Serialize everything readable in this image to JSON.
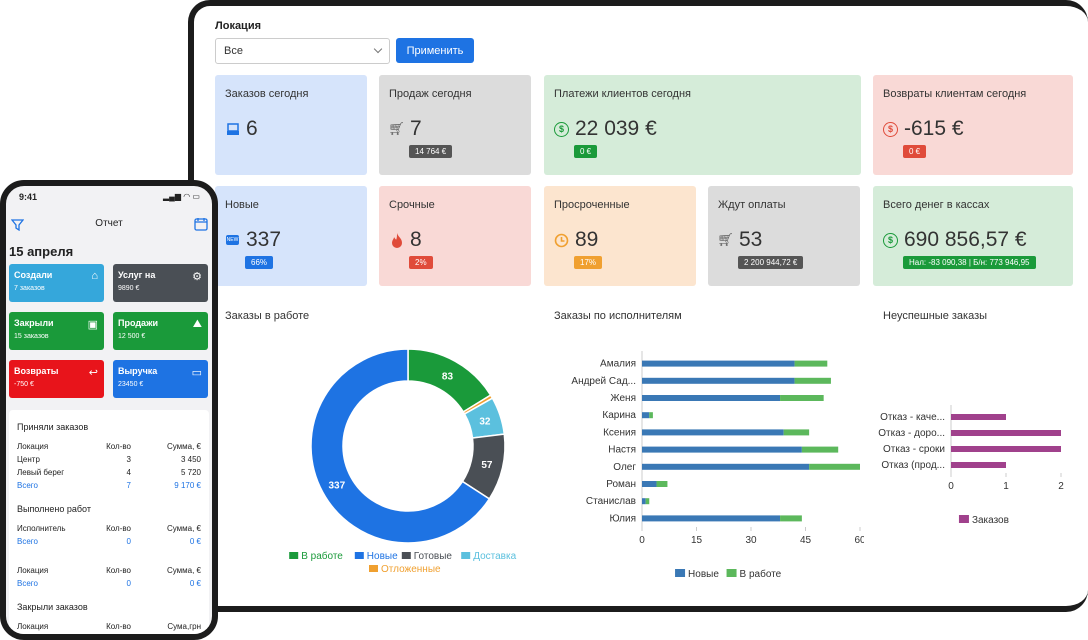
{
  "location": {
    "label": "Локация",
    "value": "Все",
    "apply": "Применить"
  },
  "cards_top": [
    {
      "title": "Заказов сегодня",
      "value": "6",
      "icon": "tray-icon",
      "bg": "#d6e4fb",
      "color": "#1e73e3"
    },
    {
      "title": "Продаж сегодня",
      "value": "7",
      "icon": "cart-icon",
      "bg": "#dcdcdc",
      "badge": "14 764 €",
      "badge_color": "#555"
    },
    {
      "title": "Платежи клиентов сегодня",
      "value": "22 039 €",
      "icon": "dollar-coin-icon",
      "bg": "#d5ecd9",
      "badge": "0 €",
      "badge_color": "#1a9a3a"
    },
    {
      "title": "Возвраты клиентам сегодня",
      "value": "-615 €",
      "icon": "dollar-coin-icon",
      "bg": "#f9d9d6",
      "badge": "0 €",
      "badge_color": "#e04b3a"
    }
  ],
  "cards_mid": [
    {
      "title": "Новые",
      "value": "337",
      "icon": "new-icon",
      "bg": "#d6e4fb",
      "badge": "66%",
      "badge_color": "#1e73e3"
    },
    {
      "title": "Срочные",
      "value": "8",
      "icon": "fire-icon",
      "bg": "#f9d9d6",
      "badge": "2%",
      "badge_color": "#e04b3a"
    },
    {
      "title": "Просроченные",
      "value": "89",
      "icon": "clock-icon",
      "bg": "#fce5cf",
      "badge": "17%",
      "badge_color": "#f0a030"
    },
    {
      "title": "Ждут оплаты",
      "value": "53",
      "icon": "cart-icon",
      "bg": "#dcdcdc",
      "badge": "2 200 944,72 €",
      "badge_color": "#555"
    },
    {
      "title": "Всего денег в кассах",
      "value": "690 856,57 €",
      "icon": "dollar-coin-icon",
      "bg": "#d5ecd9",
      "badge": "Нал: -83 090,38 | Б/н: 773 946,95",
      "badge_color": "#1a9a3a"
    }
  ],
  "panels": {
    "work": "Заказы в работе",
    "exec": "Заказы по исполнителям",
    "fail": "Неуспешные заказы"
  },
  "chart_data": [
    {
      "type": "pie",
      "title": "Заказы в работе",
      "labels": [
        "Новые",
        "В работе",
        "Отложенные",
        "Доставка",
        "Готовые"
      ],
      "values": [
        337,
        83,
        3,
        32,
        57
      ],
      "colors": [
        "#1e73e3",
        "#1a9a3a",
        "#f0a030",
        "#5bc0de",
        "#4a4f55"
      ],
      "legend": [
        {
          "name": "В работе",
          "color": "#1a9a3a"
        },
        {
          "name": "Новые",
          "color": "#1e73e3"
        },
        {
          "name": "Готовые",
          "color": "#4a4f55"
        },
        {
          "name": "Доставка",
          "color": "#5bc0de"
        },
        {
          "name": "Отложенные",
          "color": "#f0a030"
        }
      ],
      "legend_position": "bottom"
    },
    {
      "type": "bar",
      "orientation": "horizontal",
      "stacked": true,
      "categories": [
        "Амалия",
        "Андрей Сад...",
        "Женя",
        "Карина",
        "Ксения",
        "Настя",
        "Олег",
        "Роман",
        "Станислав",
        "Юлия"
      ],
      "series": [
        {
          "name": "Новые",
          "color": "#3a78b5",
          "values": [
            42,
            42,
            38,
            2,
            39,
            44,
            46,
            4,
            1,
            38
          ]
        },
        {
          "name": "В работе",
          "color": "#5cb85c",
          "values": [
            9,
            10,
            12,
            1,
            7,
            10,
            14,
            3,
            1,
            6
          ]
        }
      ],
      "xlim": [
        0,
        60
      ],
      "xticks": [
        "0",
        "15",
        "30",
        "45",
        "60"
      ],
      "grid": false,
      "legend_position": "bottom"
    },
    {
      "type": "bar",
      "orientation": "horizontal",
      "categories": [
        "Отказ - каче...",
        "Отказ - доро...",
        "Отказ - сроки",
        "Отказ (прод..."
      ],
      "series": [
        {
          "name": "Заказов",
          "color": "#a0418c",
          "values": [
            1,
            2,
            2,
            1
          ]
        }
      ],
      "xlim": [
        0,
        2
      ],
      "xticks": [
        "0",
        "1",
        "2"
      ],
      "legend_position": "bottom"
    }
  ],
  "phone": {
    "time": "9:41",
    "status": "▂▄▆ ◠ ▭",
    "title": "Отчет",
    "date": "15 апреля",
    "tiles": [
      {
        "t1": "Создали",
        "t2": "7 заказов",
        "bg": "#35a7db",
        "icon": "home-icon"
      },
      {
        "t1": "Услуг на",
        "t2": "9890 €",
        "bg": "#4a4f55",
        "icon": "gears-icon"
      },
      {
        "t1": "Закрыли",
        "t2": "15 заказов",
        "bg": "#1a9a3a",
        "icon": "clipboard-icon"
      },
      {
        "t1": "Продажи",
        "t2": "12 500 €",
        "bg": "#1a9a3a",
        "icon": "image-icon"
      },
      {
        "t1": "Возвраты",
        "t2": "-750 €",
        "bg": "#e8141b",
        "icon": "reply-icon"
      },
      {
        "t1": "Выручка",
        "t2": "23450 €",
        "bg": "#1e73e3",
        "icon": "cash-icon"
      }
    ],
    "accepted": {
      "title": "Приняли заказов",
      "head": [
        "Локация",
        "Кол-во",
        "Сумма, €"
      ],
      "rows": [
        [
          "Центр",
          "3",
          "3 450"
        ],
        [
          "Левый берег",
          "4",
          "5 720"
        ]
      ],
      "total": [
        "Всего",
        "7",
        "9 170 €"
      ]
    },
    "works": {
      "title": "Выполнено работ",
      "head": [
        "Исполнитель",
        "Кол-во",
        "Сумма, €"
      ],
      "total": [
        "Всего",
        "0",
        "0 €"
      ]
    },
    "loc2": {
      "head": [
        "Локация",
        "Кол-во",
        "Сумма, €"
      ],
      "total": [
        "Всего",
        "0",
        "0 €"
      ]
    },
    "closed": {
      "title": "Закрыли заказов",
      "head": [
        "Локация",
        "Кол-во",
        "Сума,грн"
      ]
    }
  }
}
